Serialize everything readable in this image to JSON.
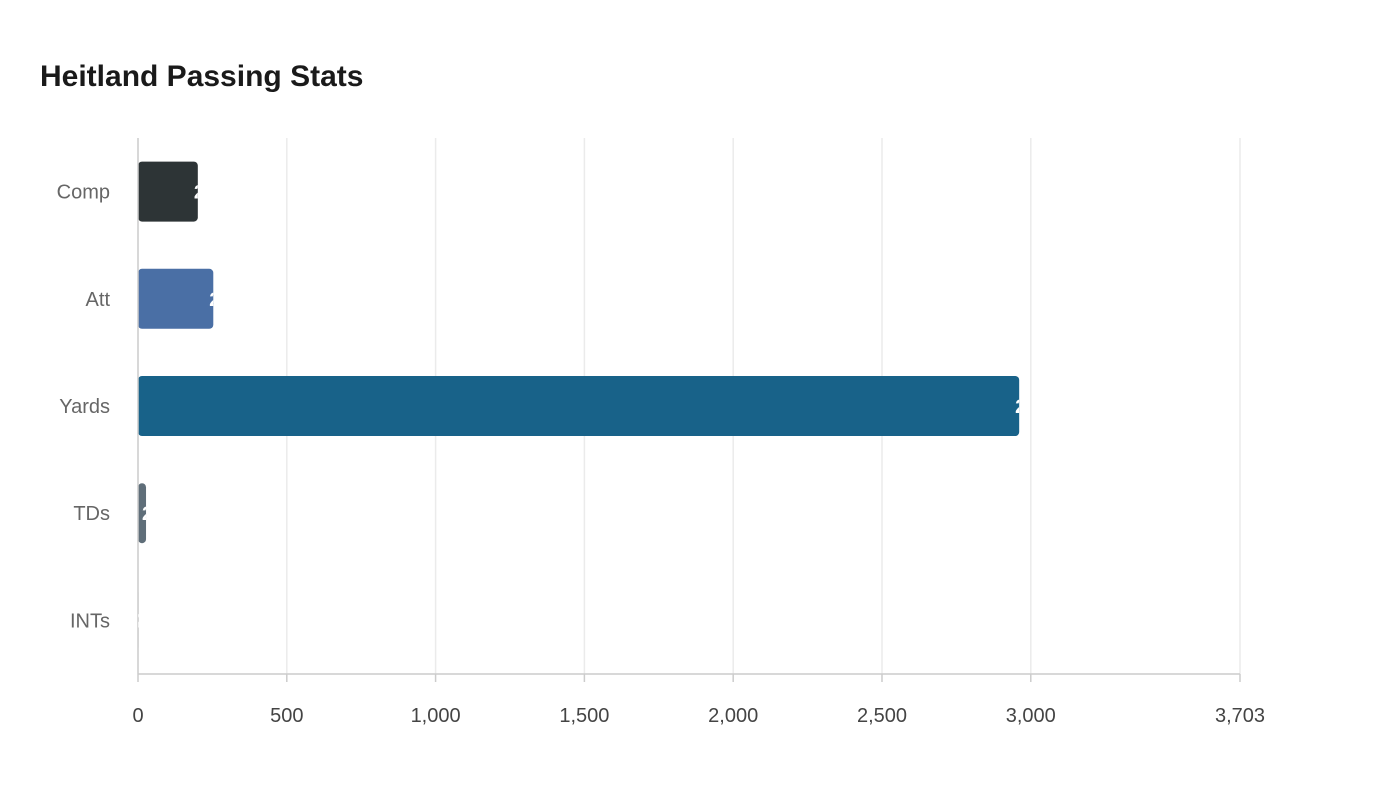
{
  "chart_data": {
    "type": "bar",
    "orientation": "horizontal",
    "title": "Heitland Passing Stats",
    "categories": [
      "Comp",
      "Att",
      "Yards",
      "TDs",
      "INTs"
    ],
    "values": [
      201,
      253,
      2961,
      27,
      2
    ],
    "colors": [
      "#2d3436",
      "#4a6fa5",
      "#186289",
      "#5f6e79",
      "#b0b0b0"
    ],
    "xlim": [
      0,
      3703
    ],
    "x_ticks": [
      0,
      500,
      1000,
      1500,
      2000,
      2500,
      3000,
      3703
    ],
    "x_tick_labels": [
      "0",
      "500",
      "1,000",
      "1,500",
      "2,000",
      "2,500",
      "3,000",
      "3,703"
    ],
    "xlabel": "",
    "ylabel": "",
    "grid": true,
    "legend": "none"
  }
}
